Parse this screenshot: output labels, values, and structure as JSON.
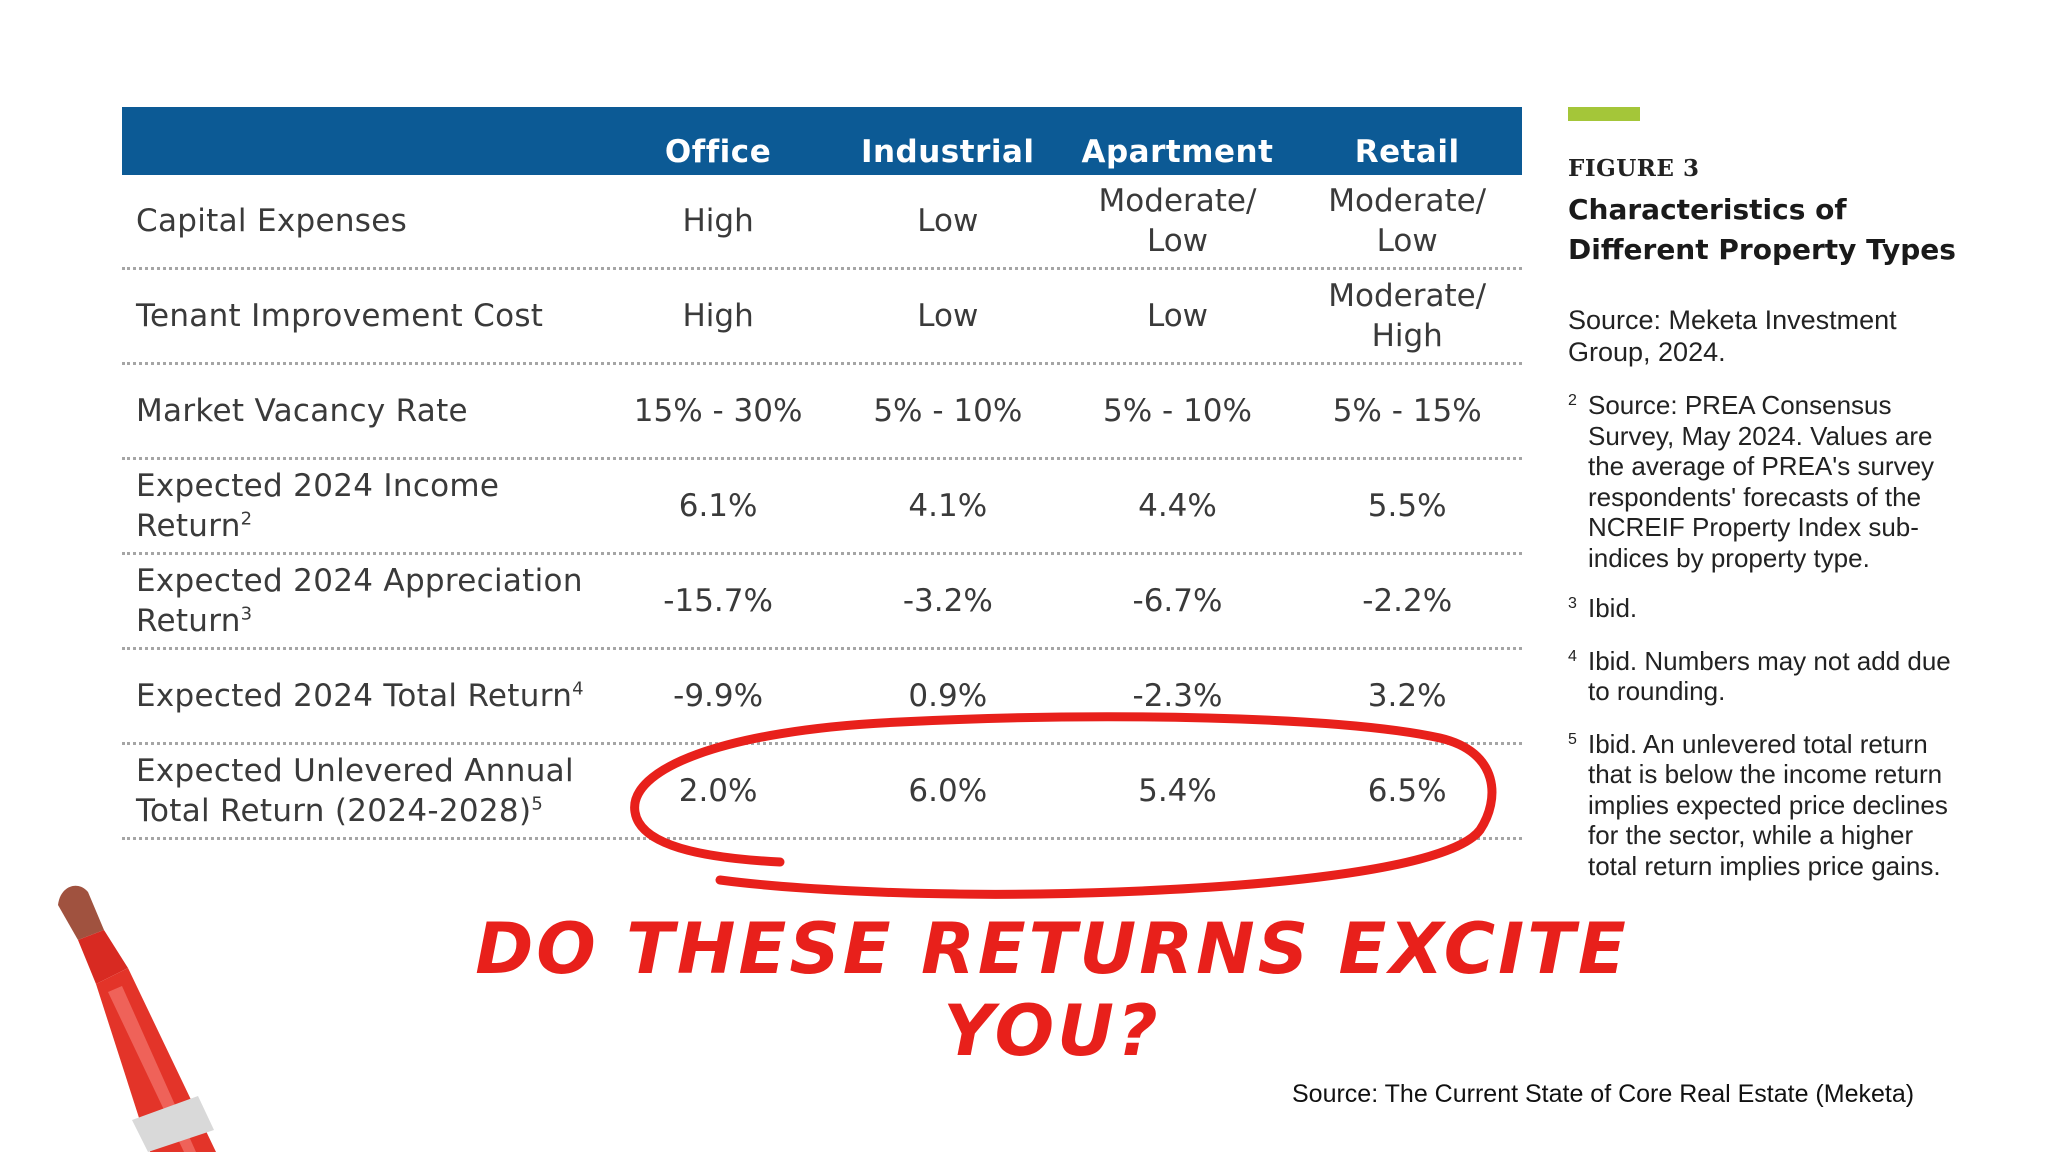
{
  "table": {
    "columns": [
      "Office",
      "Industrial",
      "Apartment",
      "Retail"
    ],
    "rows": [
      {
        "label": "Capital Expenses",
        "sup": "",
        "values": [
          "High",
          "Low",
          "Moderate/ Low",
          "Moderate/ Low"
        ]
      },
      {
        "label": "Tenant Improvement Cost",
        "sup": "",
        "values": [
          "High",
          "Low",
          "Low",
          "Moderate/ High"
        ]
      },
      {
        "label": "Market Vacancy Rate",
        "sup": "",
        "values": [
          "15% - 30%",
          "5% - 10%",
          "5% - 10%",
          "5% - 15%"
        ]
      },
      {
        "label": "Expected 2024 Income Return",
        "sup": "2",
        "values": [
          "6.1%",
          "4.1%",
          "4.4%",
          "5.5%"
        ]
      },
      {
        "label": "Expected 2024 Appreciation Return",
        "sup": "3",
        "values": [
          "-15.7%",
          "-3.2%",
          "-6.7%",
          "-2.2%"
        ]
      },
      {
        "label": "Expected 2024 Total Return",
        "sup": "4",
        "values": [
          "-9.9%",
          "0.9%",
          "-2.3%",
          "3.2%"
        ]
      },
      {
        "label": "Expected Unlevered Annual Total Return (2024-2028)",
        "sup": "5",
        "values": [
          "2.0%",
          "6.0%",
          "5.4%",
          "6.5%"
        ]
      }
    ]
  },
  "figure": {
    "number": "FIGURE 3",
    "title": "Characteristics of Different Property Types",
    "source": "Source: Meketa Investment Group, 2024.",
    "notes": [
      {
        "mark": "2",
        "text": "Source: PREA Consensus Survey, May 2024. Values are the average of PREA's survey respondents' forecasts of the NCREIF Property Index sub-indices by property type."
      },
      {
        "mark": "3",
        "text": "Ibid."
      },
      {
        "mark": "4",
        "text": "Ibid. Numbers may not add due to rounding."
      },
      {
        "mark": "5",
        "text": "Ibid. An unlevered total return that is below the income return implies expected price declines for the sector, while a higher total return implies price gains."
      }
    ]
  },
  "annotation": {
    "question": "Do these returns excite you?",
    "accent_color": "#e8201b"
  },
  "page_source": "Source: The Current State of Core  Real Estate (Meketa)",
  "colors": {
    "header_bg": "#0c5a95",
    "header_text": "#ffffff",
    "accent_bar": "#a4c639"
  }
}
